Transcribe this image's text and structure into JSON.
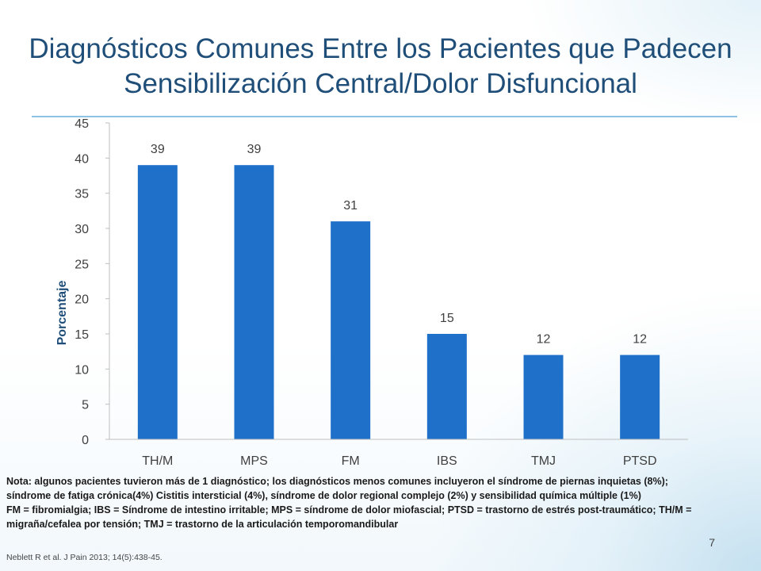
{
  "title": "Diagnósticos Comunes Entre los Pacientes que Padecen Sensibilización Central/Dolor Disfuncional",
  "notes": {
    "nota": "Nota:  algunos pacientes tuvieron más de 1 diagnóstico; los diagnósticos menos comunes incluyeron el síndrome de piernas inquietas (8%);  síndrome de fatiga crónica(4%) Cistitis intersticial (4%), síndrome de dolor regional complejo (2%) y sensibilidad química múltiple (1%)",
    "abbreviations": "FM = fibromialgia; IBS = Síndrome de intestino irritable; MPS = síndrome de dolor miofascial; PTSD = trastorno de estrés post-traumático;  TH/M = migraña/cefalea por tensión; TMJ = trastorno de la articulación temporomandibular"
  },
  "citation": "Neblett R et al. J Pain  2013; 14(5):438-45.",
  "page_number": "7",
  "colors": {
    "bar": "#1f70c9",
    "title": "#1f4e79",
    "rule": "#8fc3e6"
  },
  "chart_data": {
    "type": "bar",
    "categories": [
      "TH/M",
      "MPS",
      "FM",
      "IBS",
      "TMJ",
      "PTSD"
    ],
    "values": [
      39,
      39,
      31,
      15,
      12,
      12
    ],
    "data_labels": [
      "39",
      "39",
      "31",
      "15",
      "12",
      "12"
    ],
    "title": "",
    "xlabel": "",
    "ylabel": "Porcentaje",
    "ylim": [
      0,
      45
    ],
    "yticks": [
      0,
      5,
      10,
      15,
      20,
      25,
      30,
      35,
      40,
      45
    ],
    "grid": false,
    "legend": "none"
  }
}
